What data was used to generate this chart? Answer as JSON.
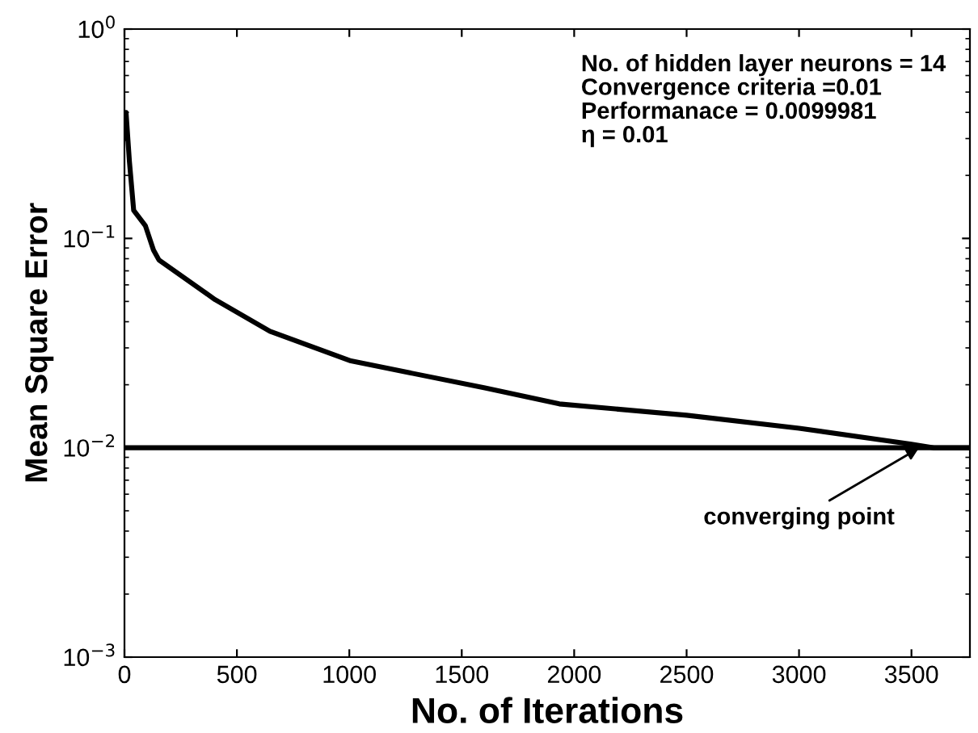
{
  "chart_data": {
    "type": "line",
    "xlabel": "No. of Iterations",
    "ylabel": "Mean Square Error",
    "log": "y",
    "xlim": [
      0,
      3760
    ],
    "xticks": [
      0,
      500,
      1000,
      1500,
      2000,
      2500,
      3000,
      3500
    ],
    "ylim": [
      0.001,
      1
    ],
    "yticks": [
      {
        "value": 0.001,
        "label": "10$^{−3}$"
      },
      {
        "value": 0.01,
        "label": "10$^{−2}$"
      },
      {
        "value": 0.1,
        "label": "10$^{−1}$"
      },
      {
        "value": 1,
        "label": "10$^{0}$"
      }
    ],
    "grid": false,
    "marker": "none",
    "line_style": "solid",
    "series": [
      {
        "color": "#000000",
        "x": [
          1,
          7,
          22,
          41,
          93,
          129,
          153,
          403,
          647,
          1007,
          1603,
          1934,
          2500,
          3000,
          3500,
          3600,
          3760
        ],
        "values": [
          0.3,
          0.4,
          0.233,
          0.136,
          0.115,
          0.088,
          0.079,
          0.051,
          0.036,
          0.026,
          0.0193,
          0.0162,
          0.0143,
          0.0124,
          0.0104,
          0.0099981,
          0.0099981
        ]
      }
    ],
    "ref_lines": [
      {
        "axis": "y",
        "value": 0.01,
        "color": "#000000",
        "line_style": "solid"
      }
    ],
    "annotations": [
      "No. of hidden layer neurons = 14\nConvergence criteria =0.01\nPerformanace = 0.0099981\nη = 0.01",
      {
        "text": "converging point",
        "x": 3550,
        "y": 0.0102
      }
    ]
  }
}
